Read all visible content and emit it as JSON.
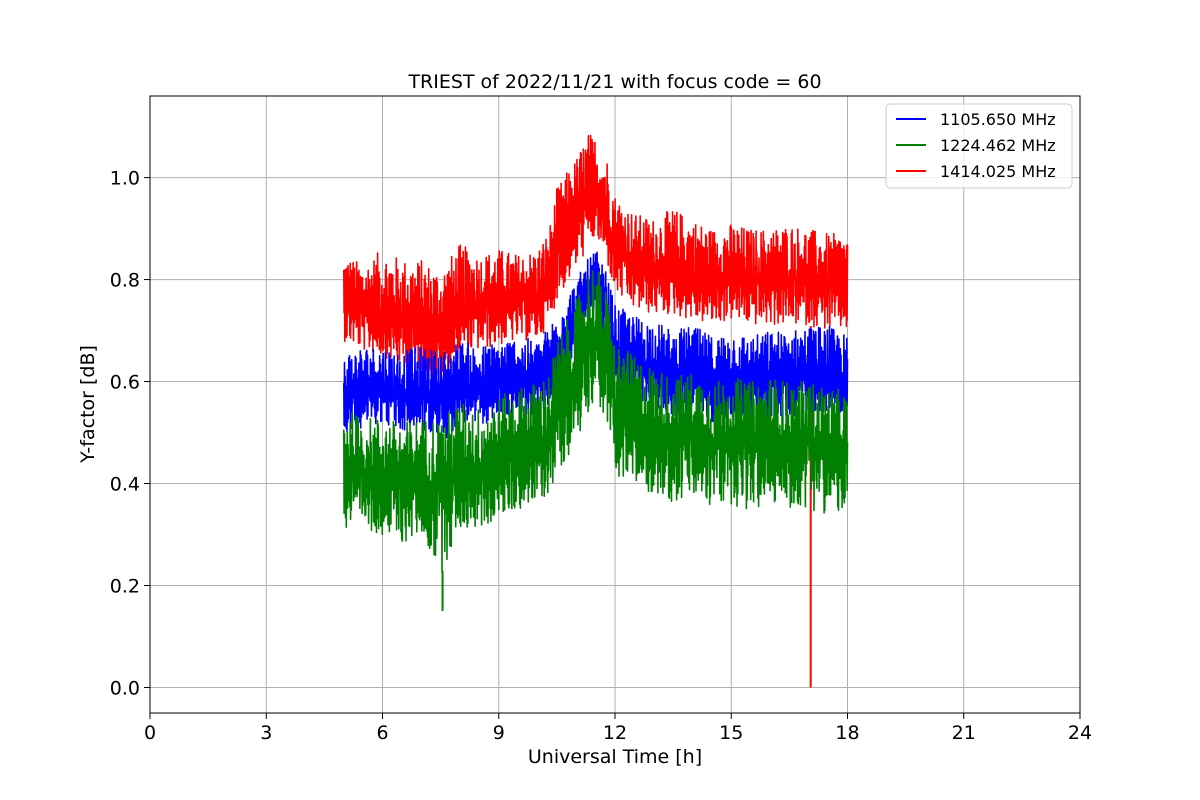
{
  "chart_data": {
    "type": "line",
    "title": "TRIEST of 2022/11/21 with focus code = 60",
    "xlabel": "Universal Time [h]",
    "ylabel": "Y-factor [dB]",
    "xlim": [
      0,
      24
    ],
    "ylim": [
      -0.05,
      1.16
    ],
    "x_ticks": [
      0,
      3,
      6,
      9,
      12,
      15,
      18,
      21,
      24
    ],
    "x_tick_labels": [
      "0",
      "3",
      "6",
      "9",
      "12",
      "15",
      "18",
      "21",
      "24"
    ],
    "y_ticks": [
      0.0,
      0.2,
      0.4,
      0.6,
      0.8,
      1.0
    ],
    "y_tick_labels": [
      "0.0",
      "0.2",
      "0.4",
      "0.6",
      "0.8",
      "1.0"
    ],
    "grid": true,
    "legend_position": "top-right",
    "x": [
      5.0,
      5.5,
      6.0,
      6.5,
      7.0,
      7.5,
      8.0,
      8.5,
      9.0,
      9.5,
      10.0,
      10.3,
      10.5,
      11.0,
      11.3,
      11.5,
      11.8,
      12.0,
      12.5,
      13.0,
      13.5,
      14.0,
      14.5,
      15.0,
      15.5,
      16.0,
      16.5,
      17.0,
      17.5,
      18.0
    ],
    "series": [
      {
        "name": "1105.650 MHz",
        "color": "#0000ff",
        "values": [
          0.57,
          0.58,
          0.59,
          0.57,
          0.58,
          0.56,
          0.6,
          0.58,
          0.6,
          0.6,
          0.6,
          0.62,
          0.66,
          0.72,
          0.77,
          0.79,
          0.73,
          0.66,
          0.64,
          0.63,
          0.61,
          0.62,
          0.6,
          0.61,
          0.6,
          0.61,
          0.61,
          0.62,
          0.62,
          0.6
        ],
        "band_min": [
          0.5,
          0.51,
          0.52,
          0.5,
          0.51,
          0.47,
          0.52,
          0.51,
          0.53,
          0.53,
          0.53,
          0.55,
          0.58,
          0.64,
          0.69,
          0.72,
          0.66,
          0.58,
          0.56,
          0.55,
          0.53,
          0.54,
          0.52,
          0.53,
          0.52,
          0.53,
          0.53,
          0.54,
          0.54,
          0.52
        ],
        "band_max": [
          0.66,
          0.67,
          0.67,
          0.66,
          0.67,
          0.66,
          0.68,
          0.67,
          0.68,
          0.69,
          0.68,
          0.71,
          0.74,
          0.8,
          0.84,
          0.86,
          0.81,
          0.75,
          0.73,
          0.72,
          0.7,
          0.71,
          0.69,
          0.7,
          0.69,
          0.7,
          0.7,
          0.71,
          0.71,
          0.69
        ]
      },
      {
        "name": "1224.462 MHz",
        "color": "#008000",
        "values": [
          0.43,
          0.42,
          0.41,
          0.4,
          0.41,
          0.39,
          0.43,
          0.42,
          0.44,
          0.46,
          0.47,
          0.49,
          0.54,
          0.62,
          0.68,
          0.7,
          0.63,
          0.55,
          0.52,
          0.5,
          0.49,
          0.5,
          0.48,
          0.49,
          0.48,
          0.49,
          0.48,
          0.48,
          0.47,
          0.46
        ],
        "band_min": [
          0.3,
          0.31,
          0.3,
          0.28,
          0.3,
          0.22,
          0.31,
          0.31,
          0.33,
          0.35,
          0.36,
          0.38,
          0.42,
          0.48,
          0.54,
          0.57,
          0.51,
          0.42,
          0.39,
          0.38,
          0.36,
          0.37,
          0.35,
          0.36,
          0.34,
          0.36,
          0.35,
          0.35,
          0.34,
          0.34
        ],
        "band_max": [
          0.55,
          0.53,
          0.53,
          0.52,
          0.53,
          0.53,
          0.56,
          0.55,
          0.57,
          0.59,
          0.6,
          0.62,
          0.68,
          0.76,
          0.82,
          0.84,
          0.77,
          0.68,
          0.65,
          0.63,
          0.61,
          0.62,
          0.6,
          0.61,
          0.6,
          0.61,
          0.6,
          0.6,
          0.59,
          0.58
        ],
        "minimum": {
          "x": 7.55,
          "y": 0.15
        }
      },
      {
        "name": "1414.025 MHz",
        "color": "#ff0000",
        "values": [
          0.76,
          0.74,
          0.73,
          0.72,
          0.71,
          0.7,
          0.74,
          0.75,
          0.76,
          0.76,
          0.76,
          0.8,
          0.86,
          0.92,
          0.96,
          0.97,
          0.92,
          0.86,
          0.83,
          0.82,
          0.82,
          0.81,
          0.8,
          0.81,
          0.8,
          0.8,
          0.8,
          0.8,
          0.79,
          0.79
        ],
        "band_min": [
          0.68,
          0.66,
          0.65,
          0.63,
          0.62,
          0.59,
          0.65,
          0.66,
          0.67,
          0.68,
          0.68,
          0.71,
          0.76,
          0.82,
          0.86,
          0.88,
          0.83,
          0.77,
          0.74,
          0.73,
          0.73,
          0.72,
          0.71,
          0.72,
          0.71,
          0.71,
          0.71,
          0.71,
          0.7,
          0.7
        ],
        "band_max": [
          0.85,
          0.83,
          0.86,
          0.84,
          0.84,
          0.82,
          0.87,
          0.85,
          0.86,
          0.85,
          0.86,
          0.9,
          0.98,
          1.04,
          1.09,
          1.08,
          1.04,
          0.97,
          0.93,
          0.92,
          0.94,
          0.92,
          0.9,
          0.91,
          0.9,
          0.9,
          0.91,
          0.9,
          0.89,
          0.89
        ],
        "minimum": {
          "x": 17.05,
          "y": 0.0
        }
      }
    ]
  }
}
